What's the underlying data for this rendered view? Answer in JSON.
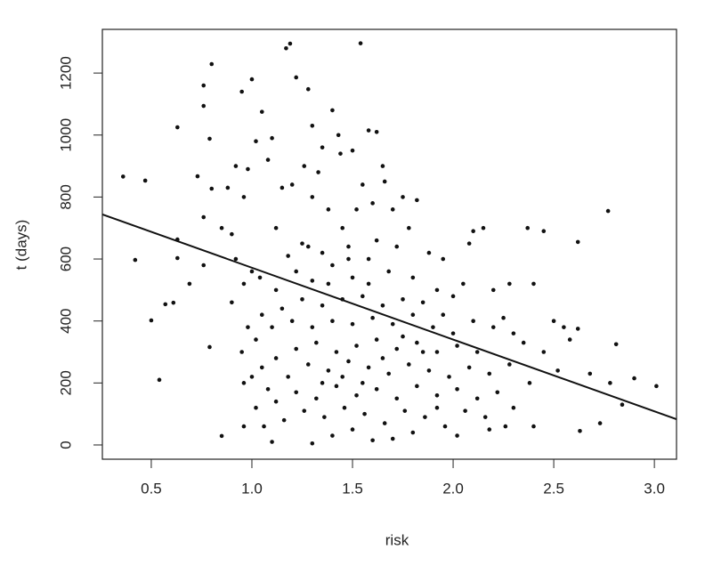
{
  "chart_data": {
    "type": "scatter",
    "xlabel": "risk",
    "ylabel": "t (days)",
    "xlim": [
      0.257,
      3.11
    ],
    "ylim": [
      -46,
      1341
    ],
    "xticks": [
      0.5,
      1.0,
      1.5,
      2.0,
      2.5,
      3.0
    ],
    "yticks": [
      0,
      200,
      400,
      600,
      800,
      1000,
      1200
    ],
    "color": "#111111",
    "x": [
      0.36,
      0.47,
      0.42,
      0.5,
      0.54,
      0.57,
      0.61,
      0.63,
      0.63,
      0.63,
      0.69,
      0.73,
      0.76,
      0.76,
      0.76,
      0.79,
      0.79,
      0.8,
      0.85,
      0.8,
      0.76,
      2.45,
      2.37,
      2.62,
      2.77,
      2.62,
      2.68,
      2.73,
      2.63,
      2.78,
      2.81,
      2.84,
      2.9,
      3.01,
      2.55,
      2.5,
      2.45,
      2.4,
      2.38,
      2.35,
      2.3,
      2.28,
      2.25,
      2.2,
      2.15,
      2.1,
      2.08,
      2.05,
      2.02,
      2.18,
      2.4,
      2.52,
      2.58,
      1.17,
      1.19,
      1.54,
      1.22,
      1.28,
      1.4,
      1.43,
      1.3,
      1.35,
      1.58,
      1.62,
      1.5,
      1.65,
      1.05,
      1.0,
      0.95,
      1.02,
      1.1,
      0.92,
      0.98,
      1.08,
      1.2,
      1.26,
      1.33,
      1.44,
      1.55,
      1.66,
      1.75,
      1.82,
      1.7,
      1.6,
      1.38,
      1.3,
      1.15,
      0.96,
      0.88,
      0.85,
      0.9,
      1.12,
      1.25,
      1.45,
      1.52,
      1.78,
      1.88,
      1.95,
      1.72,
      1.62,
      1.48,
      1.35,
      1.18,
      1.0,
      0.92,
      0.96,
      1.04,
      1.12,
      1.22,
      1.3,
      1.4,
      1.5,
      1.58,
      1.68,
      1.8,
      1.92,
      2.0,
      1.85,
      1.75,
      1.65,
      1.55,
      1.45,
      1.35,
      1.25,
      1.15,
      1.05,
      0.98,
      0.9,
      0.95,
      1.02,
      1.1,
      1.2,
      1.3,
      1.4,
      1.5,
      1.6,
      1.7,
      1.8,
      1.9,
      2.0,
      2.1,
      2.2,
      2.3,
      2.12,
      2.02,
      1.92,
      1.82,
      1.72,
      1.62,
      1.52,
      1.42,
      1.32,
      1.22,
      1.12,
      1.05,
      0.96,
      1.0,
      1.08,
      1.18,
      1.28,
      1.38,
      1.48,
      1.58,
      1.68,
      1.78,
      1.88,
      1.98,
      2.08,
      2.18,
      2.28,
      2.22,
      2.12,
      2.02,
      1.92,
      1.82,
      1.72,
      1.62,
      1.52,
      1.42,
      1.32,
      1.22,
      1.12,
      1.02,
      1.06,
      1.1,
      0.96,
      1.16,
      1.26,
      1.36,
      1.46,
      1.56,
      1.66,
      1.76,
      1.86,
      1.96,
      2.06,
      2.16,
      2.26,
      1.3,
      1.4,
      1.5,
      1.6,
      1.7,
      1.8,
      1.92,
      1.35,
      1.45,
      1.55,
      1.65,
      1.75,
      1.85,
      1.95,
      1.38,
      1.48,
      1.58,
      1.28
    ],
    "y": [
      866,
      853,
      597,
      402,
      210,
      454,
      459,
      663,
      603,
      1025,
      520,
      867,
      1094,
      735,
      580,
      316,
      988,
      827,
      29,
      1229,
      1160,
      690,
      700,
      655,
      755,
      375,
      230,
      70,
      45,
      200,
      325,
      130,
      215,
      190,
      380,
      400,
      300,
      520,
      200,
      330,
      120,
      520,
      410,
      500,
      700,
      690,
      650,
      520,
      30,
      50,
      60,
      240,
      340,
      1280,
      1295,
      1296,
      1186,
      1148,
      1080,
      1000,
      1030,
      960,
      1015,
      1010,
      950,
      900,
      1075,
      1180,
      1140,
      980,
      990,
      900,
      890,
      920,
      840,
      900,
      880,
      940,
      840,
      850,
      800,
      790,
      760,
      780,
      760,
      800,
      830,
      800,
      830,
      700,
      680,
      700,
      650,
      700,
      760,
      700,
      620,
      600,
      640,
      660,
      640,
      620,
      610,
      560,
      600,
      520,
      540,
      500,
      560,
      530,
      580,
      540,
      520,
      560,
      540,
      500,
      480,
      460,
      470,
      450,
      480,
      470,
      450,
      470,
      440,
      420,
      380,
      460,
      300,
      340,
      380,
      400,
      380,
      400,
      390,
      410,
      390,
      420,
      380,
      360,
      400,
      380,
      360,
      300,
      320,
      300,
      330,
      310,
      340,
      320,
      300,
      330,
      310,
      280,
      250,
      200,
      220,
      180,
      220,
      260,
      240,
      270,
      250,
      230,
      260,
      240,
      220,
      250,
      230,
      260,
      170,
      150,
      180,
      160,
      190,
      150,
      180,
      160,
      190,
      150,
      170,
      140,
      120,
      60,
      10,
      60,
      80,
      110,
      90,
      120,
      100,
      70,
      110,
      90,
      60,
      110,
      90,
      60,
      5,
      30,
      50,
      15,
      20,
      40,
      120,
      200,
      220,
      200,
      280,
      350,
      300,
      420,
      520,
      600,
      600,
      640
    ],
    "fit": {
      "x": [
        0.257,
        3.11
      ],
      "y": [
        744,
        83
      ]
    }
  }
}
